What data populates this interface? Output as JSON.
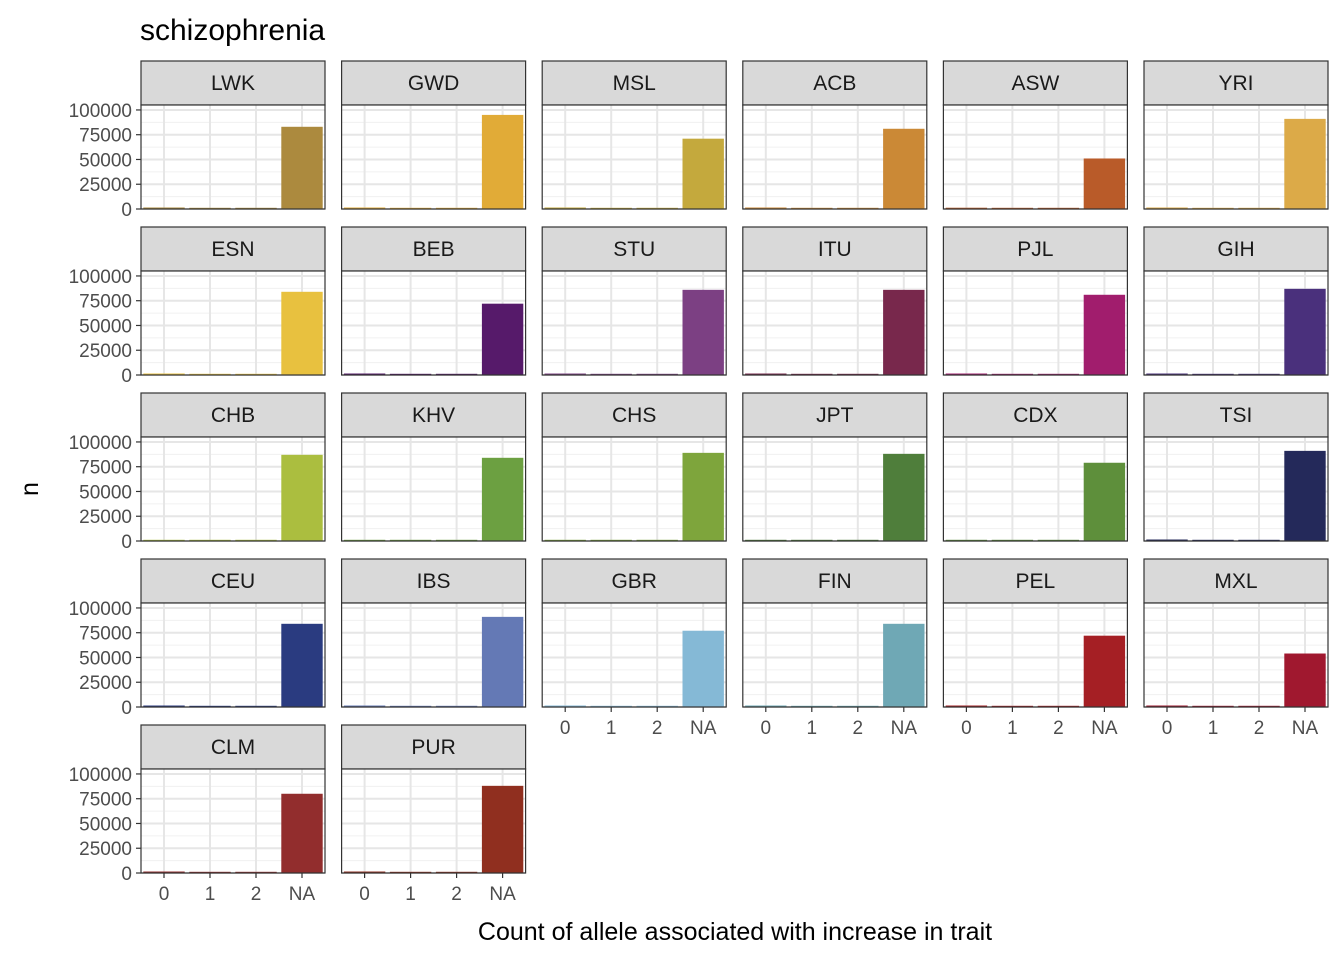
{
  "chart_data": {
    "type": "bar",
    "title": "schizophrenia",
    "xlabel": "Count of allele associated with increase in trait",
    "ylabel": "n",
    "categories": [
      "0",
      "1",
      "2",
      "NA"
    ],
    "y_ticks": [
      "0",
      "25000",
      "50000",
      "75000",
      "100000"
    ],
    "ylim": [
      0,
      105000
    ],
    "grid": true,
    "facets": [
      {
        "name": "LWK",
        "color": "#AC8A3E",
        "values": [
          1500,
          200,
          50,
          83000
        ]
      },
      {
        "name": "GWD",
        "color": "#E1AB37",
        "values": [
          1500,
          200,
          50,
          95000
        ]
      },
      {
        "name": "MSL",
        "color": "#C4A93D",
        "values": [
          1500,
          200,
          50,
          71000
        ]
      },
      {
        "name": "ACB",
        "color": "#CB8936",
        "values": [
          1500,
          300,
          100,
          81000
        ]
      },
      {
        "name": "ASW",
        "color": "#B95B29",
        "values": [
          1300,
          300,
          100,
          51000
        ]
      },
      {
        "name": "YRI",
        "color": "#DCAA48",
        "values": [
          1500,
          200,
          50,
          91000
        ]
      },
      {
        "name": "ESN",
        "color": "#E8C13F",
        "values": [
          1500,
          200,
          50,
          84000
        ]
      },
      {
        "name": "BEB",
        "color": "#561A6A",
        "values": [
          1500,
          300,
          100,
          72000
        ]
      },
      {
        "name": "STU",
        "color": "#7C4083",
        "values": [
          1500,
          300,
          100,
          86000
        ]
      },
      {
        "name": "ITU",
        "color": "#78284C",
        "values": [
          1500,
          300,
          100,
          86000
        ]
      },
      {
        "name": "PJL",
        "color": "#A11D6D",
        "values": [
          1500,
          300,
          100,
          81000
        ]
      },
      {
        "name": "GIH",
        "color": "#4A307C",
        "values": [
          1500,
          300,
          100,
          87000
        ]
      },
      {
        "name": "CHB",
        "color": "#ABBE3F",
        "values": [
          1000,
          700,
          500,
          87000
        ]
      },
      {
        "name": "KHV",
        "color": "#6CA041",
        "values": [
          1000,
          700,
          500,
          84000
        ]
      },
      {
        "name": "CHS",
        "color": "#7EA53C",
        "values": [
          1000,
          700,
          500,
          89000
        ]
      },
      {
        "name": "JPT",
        "color": "#4F7E3B",
        "values": [
          1000,
          700,
          500,
          88000
        ]
      },
      {
        "name": "CDX",
        "color": "#5E8F3B",
        "values": [
          1000,
          700,
          500,
          79000
        ]
      },
      {
        "name": "TSI",
        "color": "#24295A",
        "values": [
          1500,
          900,
          600,
          91000
        ]
      },
      {
        "name": "CEU",
        "color": "#2A3B80",
        "values": [
          1500,
          700,
          400,
          84000
        ]
      },
      {
        "name": "IBS",
        "color": "#6479B5",
        "values": [
          1500,
          500,
          200,
          91000
        ]
      },
      {
        "name": "GBR",
        "color": "#85B9D6",
        "values": [
          1500,
          500,
          200,
          77000
        ]
      },
      {
        "name": "FIN",
        "color": "#6FA8B5",
        "values": [
          1500,
          500,
          200,
          84000
        ]
      },
      {
        "name": "PEL",
        "color": "#A51F24",
        "values": [
          1500,
          500,
          200,
          72000
        ]
      },
      {
        "name": "MXL",
        "color": "#A0182F",
        "values": [
          1500,
          500,
          200,
          54000
        ]
      },
      {
        "name": "CLM",
        "color": "#922D2D",
        "values": [
          1500,
          500,
          200,
          80000
        ]
      },
      {
        "name": "PUR",
        "color": "#902F1F",
        "values": [
          1500,
          500,
          200,
          88000
        ]
      }
    ]
  }
}
